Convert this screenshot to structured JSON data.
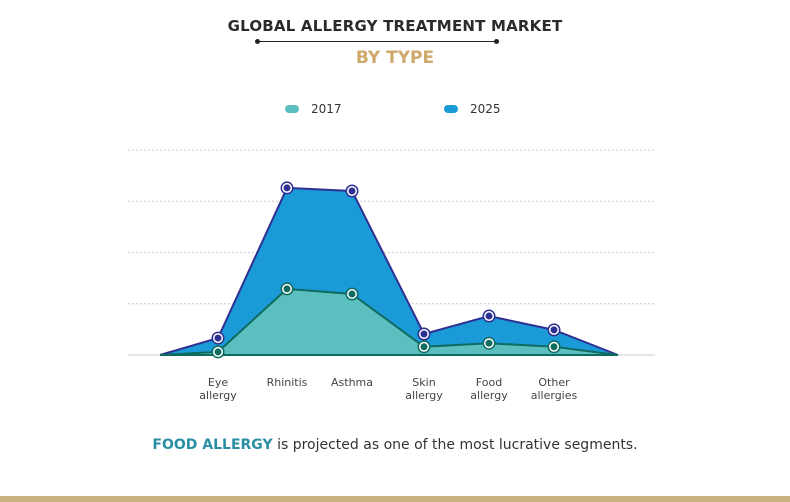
{
  "header": {
    "title": "GLOBAL ALLERGY TREATMENT MARKET",
    "subtitle": "BY TYPE"
  },
  "colors": {
    "s2017_fill": "#5bbfc0",
    "s2017_line": "#0e6b60",
    "s2025_fill": "#1b9ad8",
    "s2025_line": "#2e3192",
    "gold": "#c9b07f"
  },
  "chart_data": {
    "type": "area",
    "title": "GLOBAL ALLERGY TREATMENT MARKET BY TYPE",
    "categories": [
      "Eye allergy",
      "Rhinitis",
      "Asthma",
      "Skin allergy",
      "Food allergy",
      "Other allergies"
    ],
    "category_labels": [
      [
        "Eye",
        "allergy"
      ],
      [
        "Rhinitis",
        ""
      ],
      [
        "Asthma",
        ""
      ],
      [
        "Skin",
        "allergy"
      ],
      [
        "Food",
        "allergy"
      ],
      [
        "Other",
        "allergies"
      ]
    ],
    "series": [
      {
        "name": "2017",
        "values": [
          0.06,
          1.29,
          1.19,
          0.16,
          0.23,
          0.16
        ]
      },
      {
        "name": "2025",
        "values": [
          0.33,
          3.26,
          3.2,
          0.41,
          0.76,
          0.49
        ]
      }
    ],
    "ylim": [
      0,
      4
    ],
    "gridlines": [
      1,
      2,
      3,
      4
    ],
    "grid": true,
    "legend_position": "top",
    "xlabel": "",
    "ylabel": "",
    "note": "relative values; no y-axis tick labels shown"
  },
  "footnote": {
    "highlight": "FOOD ALLERGY",
    "rest": " is projected as one of the most lucrative segments."
  }
}
